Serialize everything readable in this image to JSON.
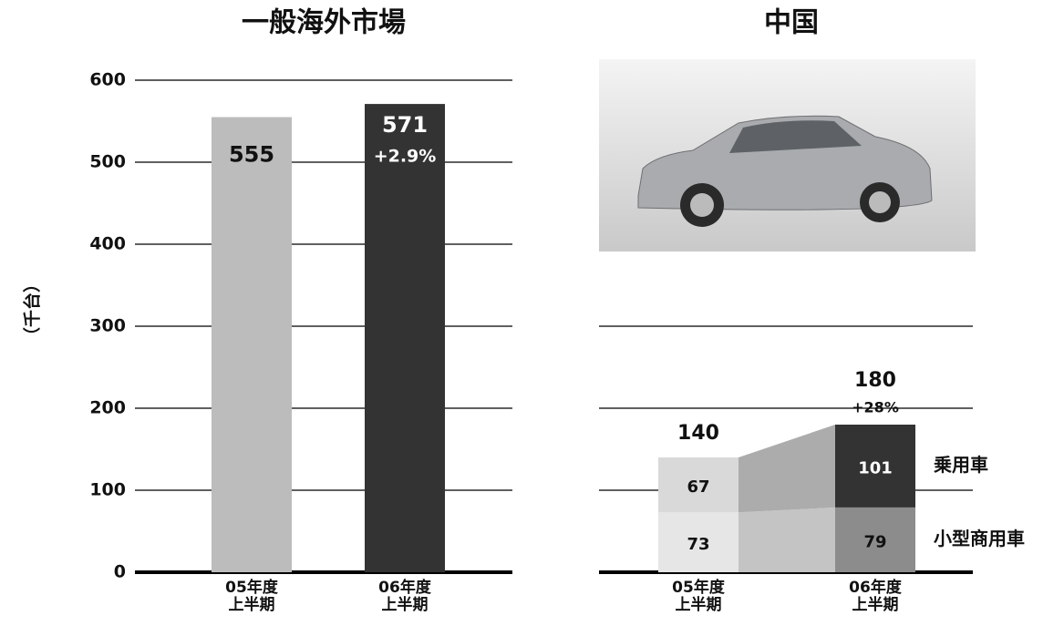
{
  "chart_data": [
    {
      "type": "bar",
      "title": "一般海外市場",
      "y_label": "（千台）",
      "categories": [
        [
          "05年度",
          "上半期"
        ],
        [
          "06年度",
          "上半期"
        ]
      ],
      "values": [
        555,
        571
      ],
      "colors": [
        "#bcbcbc",
        "#333333"
      ],
      "annotation": "+2.9%",
      "ylim": [
        0,
        600
      ],
      "yticks": [
        0,
        100,
        200,
        300,
        400,
        500,
        600
      ],
      "grid": true
    },
    {
      "type": "stacked_bar",
      "title": "中国",
      "categories": [
        [
          "05年度",
          "上半期"
        ],
        [
          "06年度",
          "上半期"
        ]
      ],
      "series": [
        {
          "name": "小型商用車",
          "colors": [
            "#e6e6e6",
            "#8c8c8c"
          ],
          "values": [
            73,
            79
          ]
        },
        {
          "name": "乗用車",
          "colors": [
            "#d9d9d9",
            "#333333"
          ],
          "values": [
            67,
            101
          ]
        }
      ],
      "totals": [
        140,
        180
      ],
      "annotation": "+28%",
      "ylim": [
        0,
        600
      ],
      "yticks": [
        0,
        100,
        200,
        300
      ],
      "grid": true
    }
  ]
}
